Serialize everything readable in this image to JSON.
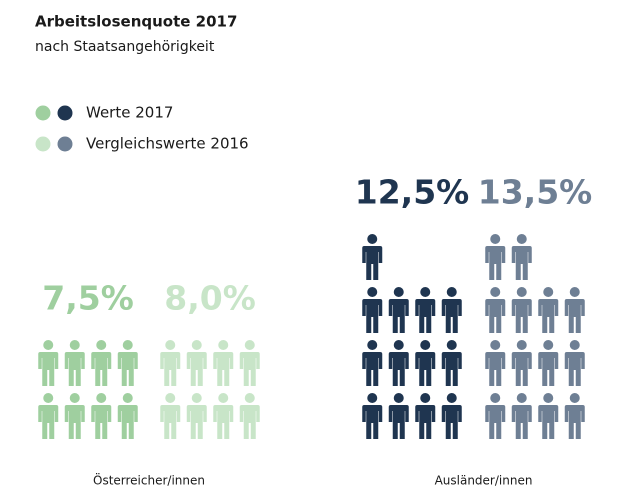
{
  "chart_data": {
    "type": "pictogram",
    "title": "Arbeitslosenquote 2017",
    "subtitle": "nach Staatsangehörigkeit",
    "categories": [
      "Österreicher/innen",
      "Ausländer/innen"
    ],
    "series": [
      {
        "name": "Werte 2017",
        "colors": [
          "#9fcf9f",
          "#1f3550"
        ],
        "values": [
          7.5,
          12.5
        ],
        "value_labels": [
          "7,5%",
          "12,5%"
        ]
      },
      {
        "name": "Vergleichswerte 2016",
        "colors": [
          "#c8e5c8",
          "#6e7f94"
        ],
        "values": [
          8.0,
          13.5
        ],
        "value_labels": [
          "8,0%",
          "13,5%"
        ]
      }
    ]
  }
}
